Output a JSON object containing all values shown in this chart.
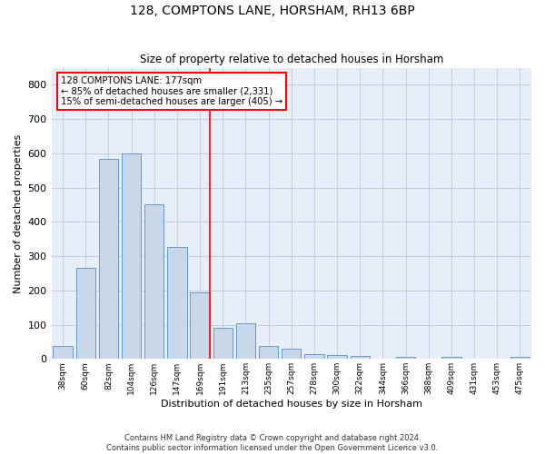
{
  "title1": "128, COMPTONS LANE, HORSHAM, RH13 6BP",
  "title2": "Size of property relative to detached houses in Horsham",
  "xlabel": "Distribution of detached houses by size in Horsham",
  "ylabel": "Number of detached properties",
  "footnote1": "Contains HM Land Registry data © Crown copyright and database right 2024.",
  "footnote2": "Contains public sector information licensed under the Open Government Licence v3.0.",
  "categories": [
    "38sqm",
    "60sqm",
    "82sqm",
    "104sqm",
    "126sqm",
    "147sqm",
    "169sqm",
    "191sqm",
    "213sqm",
    "235sqm",
    "257sqm",
    "278sqm",
    "300sqm",
    "322sqm",
    "344sqm",
    "366sqm",
    "388sqm",
    "409sqm",
    "431sqm",
    "453sqm",
    "475sqm"
  ],
  "values": [
    37,
    265,
    585,
    600,
    450,
    328,
    195,
    90,
    103,
    37,
    30,
    15,
    12,
    10,
    0,
    6,
    0,
    5,
    0,
    0,
    6
  ],
  "bar_color": "#c8d8e8",
  "bar_edge_color": "#6699cc",
  "grid_color": "#c0c8d8",
  "background_color": "#e8eef8",
  "vline_color": "red",
  "annotation_line1": "128 COMPTONS LANE: 177sqm",
  "annotation_line2": "← 85% of detached houses are smaller (2,331)",
  "annotation_line3": "15% of semi-detached houses are larger (405) →",
  "annotation_box_color": "white",
  "annotation_box_edge_color": "red",
  "ylim": [
    0,
    850
  ],
  "yticks": [
    0,
    100,
    200,
    300,
    400,
    500,
    600,
    700,
    800
  ],
  "figsize": [
    6.0,
    5.0
  ],
  "dpi": 100
}
